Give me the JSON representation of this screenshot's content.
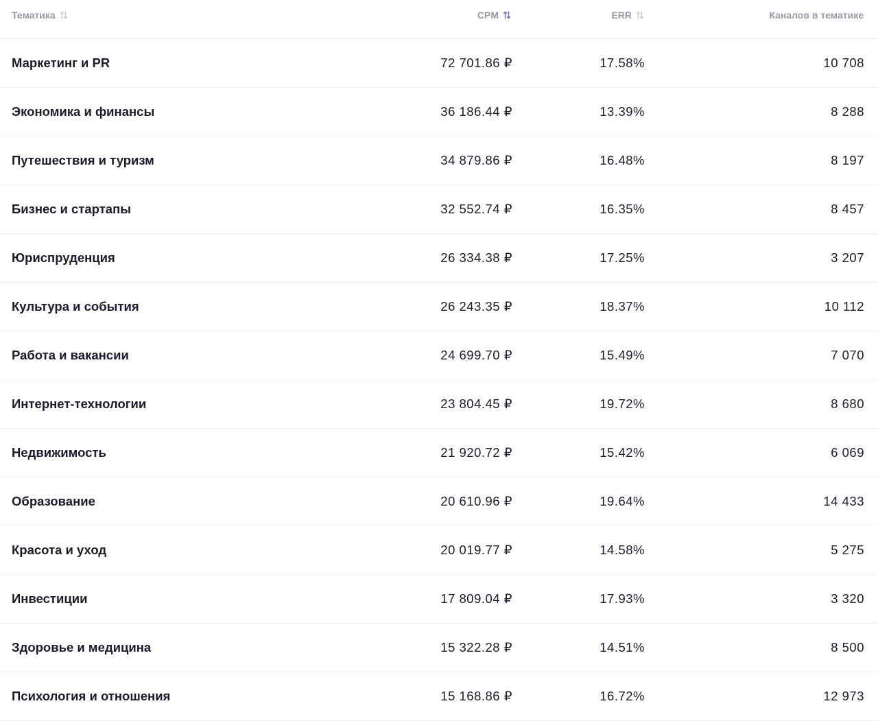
{
  "table": {
    "headers": {
      "topic": "Тематика",
      "cpm": "CPM",
      "err": "ERR",
      "channels": "Каналов в тематике"
    },
    "sort": {
      "active_column": "cpm",
      "active_color": "#7b5fd6",
      "inactive_color": "#c9c8d3"
    },
    "rows": [
      {
        "topic": "Маркетинг и PR",
        "cpm": "72 701.86 ₽",
        "err": "17.58%",
        "channels": "10 708"
      },
      {
        "topic": "Экономика и финансы",
        "cpm": "36 186.44 ₽",
        "err": "13.39%",
        "channels": "8 288"
      },
      {
        "topic": "Путешествия и туризм",
        "cpm": "34 879.86 ₽",
        "err": "16.48%",
        "channels": "8 197"
      },
      {
        "topic": "Бизнес и стартапы",
        "cpm": "32 552.74 ₽",
        "err": "16.35%",
        "channels": "8 457"
      },
      {
        "topic": "Юриспруденция",
        "cpm": "26 334.38 ₽",
        "err": "17.25%",
        "channels": "3 207"
      },
      {
        "topic": "Культура и события",
        "cpm": "26 243.35 ₽",
        "err": "18.37%",
        "channels": "10 112"
      },
      {
        "topic": "Работа и вакансии",
        "cpm": "24 699.70 ₽",
        "err": "15.49%",
        "channels": "7 070"
      },
      {
        "topic": "Интернет-технологии",
        "cpm": "23 804.45 ₽",
        "err": "19.72%",
        "channels": "8 680"
      },
      {
        "topic": "Недвижимость",
        "cpm": "21 920.72 ₽",
        "err": "15.42%",
        "channels": "6 069"
      },
      {
        "topic": "Образование",
        "cpm": "20 610.96 ₽",
        "err": "19.64%",
        "channels": "14 433"
      },
      {
        "topic": "Красота и уход",
        "cpm": "20 019.77 ₽",
        "err": "14.58%",
        "channels": "5 275"
      },
      {
        "topic": "Инвестиции",
        "cpm": "17 809.04 ₽",
        "err": "17.93%",
        "channels": "3 320"
      },
      {
        "topic": "Здоровье и медицина",
        "cpm": "15 322.28 ₽",
        "err": "14.51%",
        "channels": "8 500"
      },
      {
        "topic": "Психология и отношения",
        "cpm": "15 168.86 ₽",
        "err": "16.72%",
        "channels": "12 973"
      }
    ]
  }
}
